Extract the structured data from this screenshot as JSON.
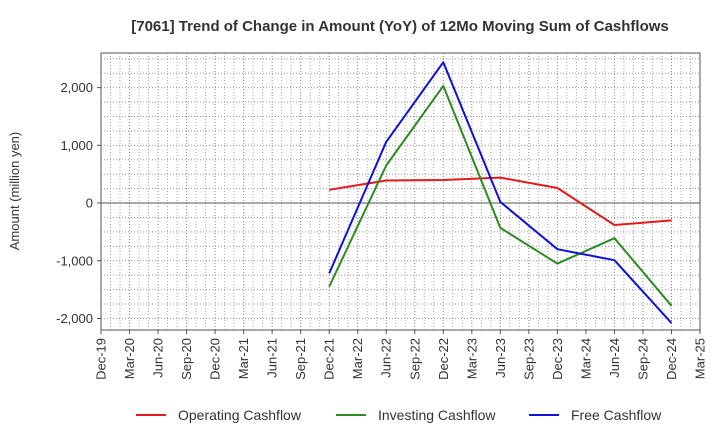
{
  "chart_data": {
    "type": "line",
    "title": "[7061]  Trend of Change in Amount (YoY) of 12Mo Moving Sum of Cashflows",
    "xlabel": "",
    "ylabel": "Amount (million yen)",
    "ylim": [
      -2200,
      2600
    ],
    "yticks": [
      -2000,
      -1000,
      0,
      1000,
      2000
    ],
    "ytick_labels": [
      "-2,000",
      "-1,000",
      "0",
      "1,000",
      "2,000"
    ],
    "categories": [
      "Dec-19",
      "Mar-20",
      "Jun-20",
      "Sep-20",
      "Dec-20",
      "Mar-21",
      "Jun-21",
      "Sep-21",
      "Dec-21",
      "Mar-22",
      "Jun-22",
      "Sep-22",
      "Dec-22",
      "Mar-23",
      "Jun-23",
      "Sep-23",
      "Dec-23",
      "Mar-24",
      "Jun-24",
      "Sep-24",
      "Dec-24",
      "Mar-25"
    ],
    "grid": true,
    "legend_position": "bottom",
    "series": [
      {
        "name": "Operating Cashflow",
        "color": "#e31a1c",
        "values": [
          null,
          null,
          null,
          null,
          null,
          null,
          null,
          null,
          230,
          null,
          390,
          null,
          400,
          null,
          440,
          null,
          260,
          null,
          -380,
          null,
          -300,
          null
        ]
      },
      {
        "name": "Investing Cashflow",
        "color": "#2e8b22",
        "values": [
          null,
          null,
          null,
          null,
          null,
          null,
          null,
          null,
          -1450,
          null,
          650,
          null,
          2030,
          null,
          -430,
          null,
          -1050,
          null,
          -610,
          null,
          -1780,
          null
        ]
      },
      {
        "name": "Free Cashflow",
        "color": "#1010dd",
        "values": [
          null,
          null,
          null,
          null,
          null,
          null,
          null,
          null,
          -1220,
          null,
          1060,
          null,
          2440,
          null,
          20,
          null,
          -800,
          null,
          -990,
          null,
          -2080,
          null
        ]
      }
    ]
  }
}
